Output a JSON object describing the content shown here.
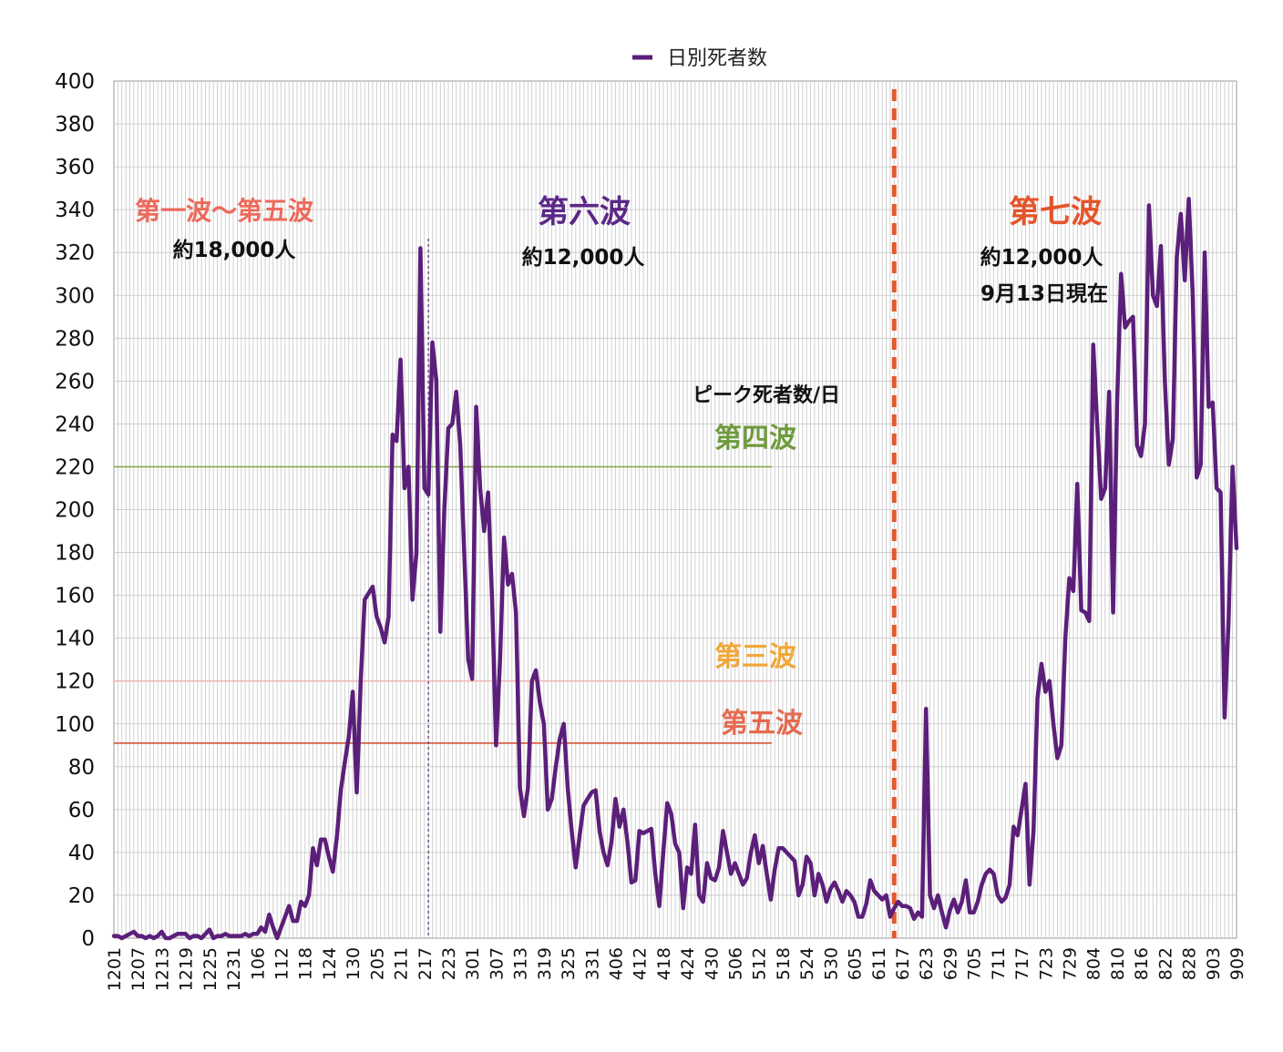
{
  "chart_data": {
    "type": "line",
    "legend": {
      "label": "日別死者数",
      "position": "top-center"
    },
    "ylim": [
      0,
      400
    ],
    "yticks": [
      0,
      20,
      40,
      60,
      80,
      100,
      120,
      140,
      160,
      180,
      200,
      220,
      240,
      260,
      280,
      300,
      320,
      340,
      360,
      380,
      400
    ],
    "xtick_labels": [
      "1201",
      "1207",
      "1213",
      "1219",
      "1225",
      "1231",
      "106",
      "112",
      "118",
      "124",
      "130",
      "205",
      "211",
      "217",
      "223",
      "301",
      "307",
      "313",
      "319",
      "325",
      "331",
      "406",
      "412",
      "418",
      "424",
      "430",
      "506",
      "512",
      "518",
      "524",
      "530",
      "605",
      "611",
      "617",
      "623",
      "629",
      "705",
      "711",
      "717",
      "723",
      "729",
      "804",
      "810",
      "816",
      "822",
      "828",
      "903",
      "909"
    ],
    "grid": true,
    "series": [
      {
        "name": "日別死者数",
        "color": "#5b1f7a",
        "values": [
          1,
          1,
          0,
          1,
          2,
          3,
          1,
          1,
          0,
          1,
          0,
          1,
          3,
          0,
          0,
          1,
          2,
          2,
          2,
          0,
          1,
          1,
          0,
          2,
          4,
          0,
          1,
          1,
          2,
          1,
          1,
          1,
          1,
          2,
          1,
          2,
          2,
          5,
          3,
          11,
          5,
          0,
          5,
          10,
          15,
          8,
          8,
          17,
          15,
          20,
          42,
          34,
          46,
          46,
          38,
          31,
          47,
          69,
          82,
          94,
          115,
          68,
          120,
          158,
          161,
          164,
          150,
          145,
          138,
          150,
          235,
          232,
          270,
          210,
          220,
          158,
          180,
          322,
          210,
          207,
          278,
          260,
          143,
          200,
          238,
          240,
          255,
          230,
          180,
          130,
          121,
          248,
          210,
          190,
          208,
          158,
          90,
          130,
          187,
          165,
          170,
          152,
          70,
          57,
          70,
          120,
          125,
          110,
          100,
          60,
          65,
          80,
          93,
          100,
          70,
          50,
          33,
          48,
          62,
          65,
          68,
          69,
          50,
          40,
          34,
          45,
          65,
          52,
          60,
          45,
          26,
          27,
          50,
          49,
          50,
          51,
          30,
          15,
          40,
          63,
          58,
          44,
          40,
          14,
          33,
          30,
          53,
          20,
          17,
          35,
          28,
          27,
          33,
          50,
          40,
          30,
          35,
          30,
          25,
          28,
          40,
          48,
          35,
          43,
          30,
          18,
          32,
          42,
          42,
          40,
          38,
          36,
          20,
          25,
          38,
          35,
          20,
          30,
          25,
          17,
          23,
          26,
          22,
          17,
          22,
          20,
          17,
          10,
          10,
          16,
          27,
          22,
          20,
          18,
          20,
          10,
          14,
          17,
          15,
          15,
          14,
          9,
          12,
          10,
          107,
          20,
          14,
          20,
          12,
          5,
          13,
          18,
          12,
          17,
          27,
          12,
          12,
          17,
          25,
          30,
          32,
          30,
          20,
          17,
          19,
          25,
          52,
          48,
          60,
          72,
          25,
          50,
          112,
          128,
          115,
          120,
          100,
          84,
          90,
          140,
          168,
          162,
          212,
          153,
          152,
          148,
          277,
          240,
          205,
          210,
          255,
          152,
          250,
          310,
          285,
          288,
          290,
          230,
          225,
          240,
          342,
          300,
          295,
          323,
          260,
          221,
          233,
          318,
          338,
          307,
          345,
          300,
          215,
          221,
          320,
          248,
          250,
          210,
          208,
          103,
          148,
          220,
          182
        ]
      }
    ],
    "reference_lines": [
      {
        "label": "第四波",
        "value": 220,
        "color": "#7fa63f",
        "text_color": "#6f9a3e"
      },
      {
        "label": "第三波",
        "value": 120,
        "color": "#f0b5b5",
        "text_color": "#f0a838"
      },
      {
        "label": "第五波",
        "value": 91,
        "color": "#d2472a",
        "text_color": "#e56a4f"
      }
    ],
    "peak_label": "ピーク死者数/日",
    "annotations": [
      {
        "title": "第一波〜第五波",
        "count": "約18,000人",
        "title_color": "#ec6a5c"
      },
      {
        "title": "第六波",
        "count": "約12,000人",
        "title_color": "#5b2886"
      },
      {
        "title": "第七波",
        "count": "約12,000人",
        "note": "9月13日現在",
        "title_color": "#e4542a"
      }
    ],
    "markers": [
      {
        "type": "dotted-vline",
        "at_index": 79,
        "color": "#5b3a7a"
      },
      {
        "type": "dashed-vline",
        "at_index": 196,
        "color": "#e15a2e"
      }
    ]
  }
}
